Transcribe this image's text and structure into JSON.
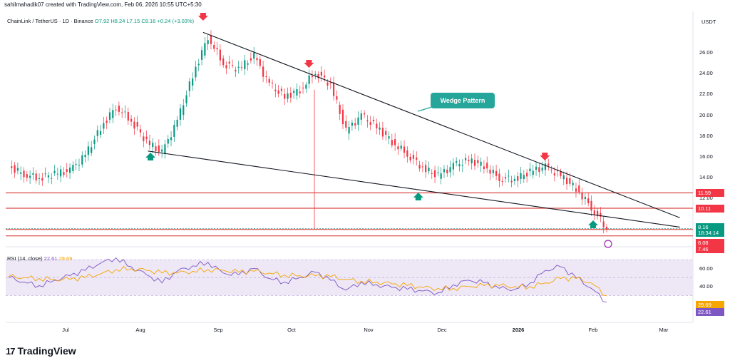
{
  "header": {
    "caption": "sahilmahadik07 created with TradingView.com, Feb 06, 2026 10:55 UTC+5:30"
  },
  "legend": {
    "symbol": "ChainLink / TetherUS · 1D · Binance",
    "ohlc": "O7.92 H8.24 L7.15 C8.16 +0.24 (+3.03%)"
  },
  "rsi_legend": {
    "label": "RSI (14, close)",
    "rsi": "22.61",
    "ma": "29.69"
  },
  "currency": "USDT",
  "annotation": {
    "label": "Wedge Pattern"
  },
  "price_tags": [
    {
      "text": "11.59",
      "color": "#f23645"
    },
    {
      "text": "10.11",
      "color": "#f23645"
    },
    {
      "text": "8.16",
      "color": "#089981"
    },
    {
      "text": "18:34:14",
      "color": "#089981"
    },
    {
      "text": "8.08",
      "color": "#f23645"
    },
    {
      "text": "7.46",
      "color": "#f23645"
    }
  ],
  "rsi_tags": [
    {
      "text": "29.69",
      "color": "#f7a600"
    },
    {
      "text": "22.61",
      "color": "#7e57c2"
    }
  ],
  "brand": {
    "logo": "17",
    "name": "TradingView"
  },
  "colors": {
    "up": "#089981",
    "down": "#f23645",
    "support": "#e06666",
    "rsi": "#7e57c2",
    "rsi_ma": "#f7a600",
    "rsi_band": "#ede7f6"
  },
  "icons": [
    "up-arrow-icon",
    "down-arrow-icon",
    "tradingview-logo-icon",
    "earnings-icon"
  ],
  "chart_data": [
    {
      "type": "candlestick",
      "title": "ChainLink / TetherUS",
      "ylabel": "USDT",
      "ylim": [
        7.0,
        27.5
      ],
      "y_ticks": [
        26.0,
        24.0,
        22.0,
        20.0,
        18.0,
        16.0,
        14.0,
        12.0
      ],
      "x_ticks": [
        "Jul",
        "Aug",
        "Sep",
        "Oct",
        "Nov",
        "Dec",
        "2026",
        "Feb",
        "Mar"
      ],
      "approx_closes": [
        14.1,
        13.4,
        13.0,
        13.4,
        13.7,
        15.2,
        17.8,
        19.9,
        18.5,
        16.5,
        15.4,
        18.5,
        22.8,
        26.6,
        24.0,
        23.5,
        24.7,
        22.0,
        20.8,
        21.5,
        23.2,
        22.0,
        17.5,
        19.0,
        17.9,
        16.5,
        15.3,
        14.0,
        13.2,
        14.2,
        14.7,
        14.2,
        13.0,
        12.9,
        13.6,
        14.1,
        13.2,
        12.0,
        10.2,
        8.16
      ],
      "horizontal_levels": [
        11.59,
        10.11,
        8.08,
        7.46
      ],
      "trendlines": [
        {
          "from": [
            "2025-08-26",
            27.0
          ],
          "to": [
            "2026-03-08",
            9.2
          ]
        },
        {
          "from": [
            "2025-08-04",
            15.6
          ],
          "to": [
            "2026-03-08",
            8.3
          ]
        }
      ],
      "markers": [
        {
          "date": "2025-08-26",
          "dir": "down"
        },
        {
          "date": "2025-10-08",
          "dir": "down"
        },
        {
          "date": "2026-01-12",
          "dir": "down"
        },
        {
          "date": "2025-08-05",
          "dir": "up"
        },
        {
          "date": "2025-11-22",
          "dir": "up"
        },
        {
          "date": "2026-02-01",
          "dir": "up"
        }
      ]
    },
    {
      "type": "line",
      "title": "RSI (14, close)",
      "ylim": [
        20,
        70
      ],
      "y_ticks": [
        60.0,
        40.0
      ],
      "band": [
        30,
        70
      ],
      "series": [
        {
          "name": "RSI",
          "values": [
            50,
            45,
            41,
            47,
            52,
            58,
            66,
            72,
            62,
            53,
            44,
            57,
            63,
            67,
            55,
            53,
            60,
            49,
            45,
            50,
            56,
            47,
            36,
            45,
            42,
            39,
            37,
            35,
            33,
            42,
            47,
            44,
            38,
            37,
            44,
            58,
            62,
            50,
            38,
            22.61
          ]
        },
        {
          "name": "MA",
          "values": [
            51,
            50,
            49,
            48,
            48,
            50,
            54,
            59,
            60,
            58,
            55,
            55,
            57,
            59,
            58,
            56,
            57,
            55,
            53,
            52,
            52,
            51,
            48,
            46,
            45,
            43,
            41,
            39,
            38,
            38,
            40,
            41,
            41,
            40,
            40,
            44,
            49,
            49,
            44,
            29.69
          ]
        }
      ]
    }
  ]
}
